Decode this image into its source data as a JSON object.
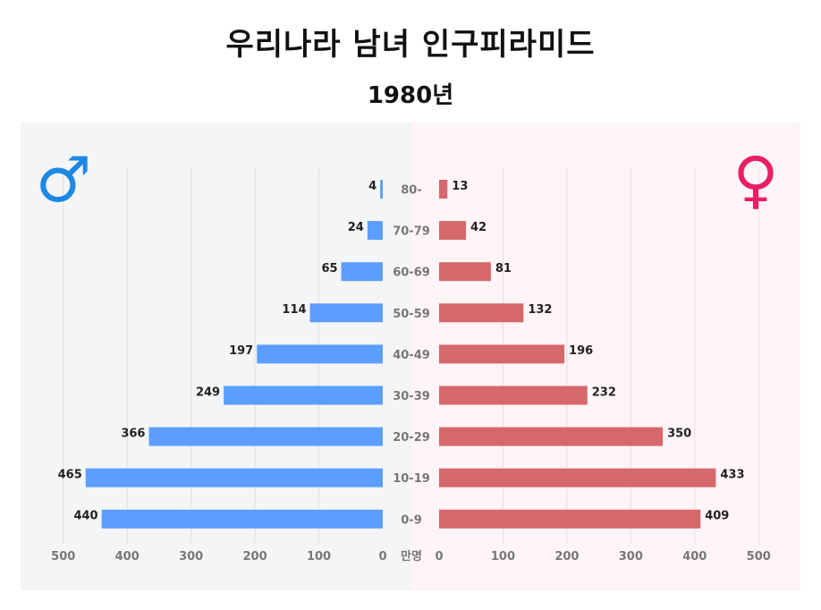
{
  "title": "우리나라 남녀 인구피라미드",
  "subtitle": "1980년",
  "colors": {
    "male": "#5b9eff",
    "female": "#d4686b",
    "male_bg": "#f4f5f7",
    "female_bg": "#fff4f7",
    "male_symbol": "#1e88e5",
    "female_symbol": "#e91e63"
  },
  "chart_data": {
    "type": "bar",
    "orientation": "horizontal",
    "unit_label": "만명",
    "categories": [
      "80-",
      "70-79",
      "60-69",
      "50-59",
      "40-49",
      "30-39",
      "20-29",
      "10-19",
      "0-9"
    ],
    "series": [
      {
        "name": "male",
        "symbol": "♂",
        "values": [
          4,
          24,
          65,
          114,
          197,
          249,
          366,
          465,
          440
        ]
      },
      {
        "name": "female",
        "symbol": "♀",
        "values": [
          13,
          42,
          81,
          132,
          196,
          232,
          350,
          433,
          409
        ]
      }
    ],
    "xlim": [
      0,
      500
    ],
    "x_ticks": [
      0,
      100,
      200,
      300,
      400,
      500
    ],
    "grid": true
  }
}
